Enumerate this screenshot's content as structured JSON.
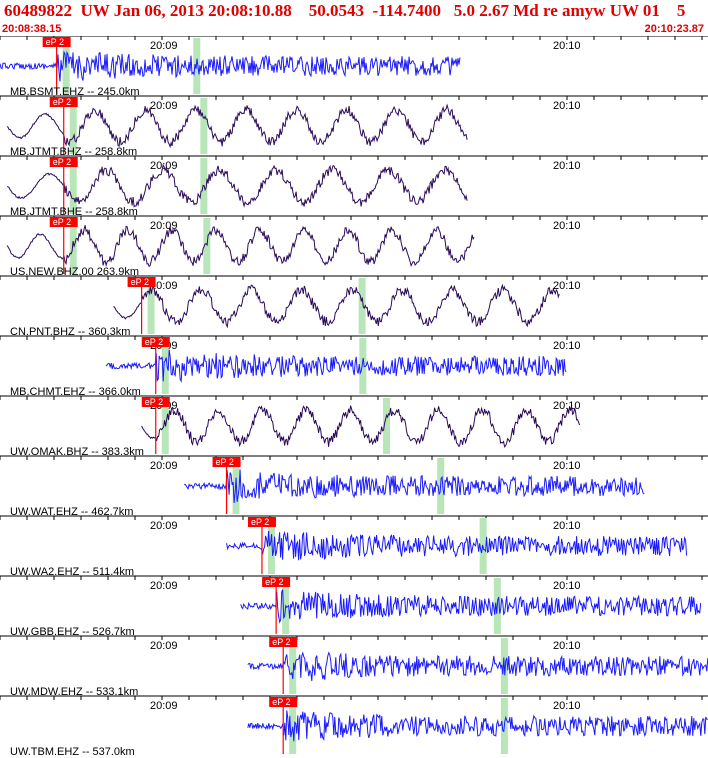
{
  "header": {
    "title": "60489822  UW Jan 06, 2013 20:08:10.88    50.0543  -114.7400   5.0 2.67 Md re amyw UW 01    5",
    "start_time": "20:08:38.15",
    "end_time": "20:10:23.87"
  },
  "time_marks": [
    "20:09",
    "20:10"
  ],
  "pick_label": "eP 2",
  "colors": {
    "title": "#e00000",
    "trace_blue": "#1a1aff",
    "trace_navy": "#2a0a5a",
    "pick": "#ff0000",
    "window": "#b9e6b9"
  },
  "traces": [
    {
      "label": "MB.BSMT.EHZ -- 245.0km",
      "color": "blue",
      "style": "noise",
      "start_frac": 0.0,
      "end_frac": 0.65,
      "pick_frac": 0.08
    },
    {
      "label": "MB.JTMT.BHZ -- 258.8km",
      "color": "navy",
      "style": "wave",
      "start_frac": 0.01,
      "end_frac": 0.66,
      "pick_frac": 0.09
    },
    {
      "label": "MB.JTMT.BHE -- 258.8km",
      "color": "navy",
      "style": "wave",
      "start_frac": 0.01,
      "end_frac": 0.66,
      "pick_frac": 0.09
    },
    {
      "label": "US.NEW.BHZ.00 263.9km",
      "color": "navy",
      "style": "wave",
      "start_frac": 0.01,
      "end_frac": 0.67,
      "pick_frac": 0.09
    },
    {
      "label": "CN.PNT.BHZ -- 360.3km",
      "color": "navy",
      "style": "wave",
      "start_frac": 0.16,
      "end_frac": 0.79,
      "pick_frac": 0.2
    },
    {
      "label": "MB.CHMT.EHZ -- 366.0km",
      "color": "blue",
      "style": "noise",
      "start_frac": 0.15,
      "end_frac": 0.8,
      "pick_frac": 0.22
    },
    {
      "label": "UW.OMAK.BHZ -- 383.3km",
      "color": "navy",
      "style": "wave",
      "start_frac": 0.2,
      "end_frac": 0.82,
      "pick_frac": 0.22
    },
    {
      "label": "UW.WAT.EHZ -- 462.7km",
      "color": "blue",
      "style": "noise",
      "start_frac": 0.26,
      "end_frac": 0.91,
      "pick_frac": 0.32
    },
    {
      "label": "UW.WA2.EHZ -- 511.4km",
      "color": "blue",
      "style": "noise",
      "start_frac": 0.32,
      "end_frac": 0.97,
      "pick_frac": 0.37
    },
    {
      "label": "UW.GBB.EHZ -- 526.7km",
      "color": "blue",
      "style": "noise",
      "start_frac": 0.34,
      "end_frac": 0.99,
      "pick_frac": 0.39
    },
    {
      "label": "UW.MDW.EHZ -- 533.1km",
      "color": "blue",
      "style": "noise",
      "start_frac": 0.35,
      "end_frac": 1.0,
      "pick_frac": 0.4
    },
    {
      "label": "UW.TBM.EHZ -- 537.0km",
      "color": "blue",
      "style": "noise",
      "start_frac": 0.35,
      "end_frac": 1.0,
      "pick_frac": 0.4
    }
  ]
}
